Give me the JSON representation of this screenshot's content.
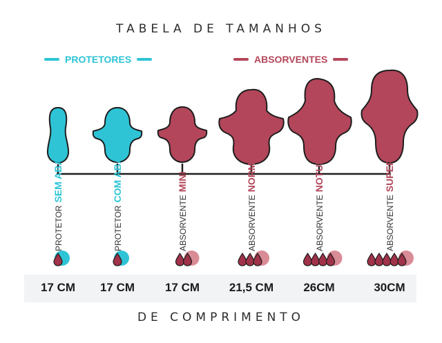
{
  "title": "TABELA DE TAMANHOS",
  "footer": "DE COMPRIMENTO",
  "categories": {
    "protetores": "PROTETORES",
    "absorventes": "ABSORVENTES"
  },
  "colors": {
    "teal": "#2ec4d6",
    "wine": "#b3465a",
    "droplet_circle": "#d98b96",
    "outline": "#1d1d1d"
  },
  "products": [
    {
      "prefix": "PROTETOR",
      "name": "SEM ABAS",
      "size": "17 CM",
      "color": "teal",
      "drops": 1
    },
    {
      "prefix": "PROTETOR",
      "name": "COM ABAS",
      "size": "17 CM",
      "color": "teal",
      "drops": 1
    },
    {
      "prefix": "ABSORVENTE",
      "name": "MINI",
      "size": "17 CM",
      "color": "wine",
      "drops": 2
    },
    {
      "prefix": "ABSORVENTE",
      "name": "NORMAL",
      "size": "21,5 CM",
      "color": "wine",
      "drops": 3
    },
    {
      "prefix": "ABSORVENTE",
      "name": "NOTURNO",
      "size": "26CM",
      "color": "wine",
      "drops": 4
    },
    {
      "prefix": "ABSORVENTE",
      "name": "SUPER",
      "size": "30CM",
      "color": "wine",
      "drops": 5
    }
  ]
}
